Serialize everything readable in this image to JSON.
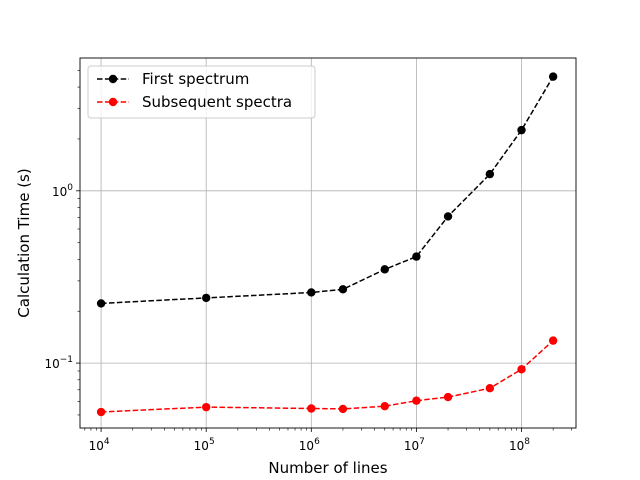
{
  "chart_data": {
    "type": "line",
    "xlabel": "Number of lines",
    "ylabel": "Calculation Time (s)",
    "x_scale": "log",
    "y_scale": "log",
    "xlim": [
      6300,
      330000000
    ],
    "ylim": [
      0.042,
      5.9
    ],
    "grid": true,
    "legend_position": "upper-left",
    "x_ticks": [
      {
        "value": 10000,
        "base": "10",
        "exp": "4"
      },
      {
        "value": 100000,
        "base": "10",
        "exp": "5"
      },
      {
        "value": 1000000,
        "base": "10",
        "exp": "6"
      },
      {
        "value": 10000000,
        "base": "10",
        "exp": "7"
      },
      {
        "value": 100000000,
        "base": "10",
        "exp": "8"
      }
    ],
    "y_ticks": [
      {
        "value": 0.1,
        "base": "10",
        "exp": "−1"
      },
      {
        "value": 1,
        "base": "10",
        "exp": "0"
      }
    ],
    "series": [
      {
        "name": "First spectrum",
        "color": "#000000",
        "linestyle": "dashed",
        "marker": "circle",
        "x": [
          10000,
          100000,
          1000000,
          2000000,
          5000000,
          10000000,
          20000000,
          50000000,
          100000000,
          200000000
        ],
        "y": [
          0.222,
          0.239,
          0.257,
          0.268,
          0.35,
          0.415,
          0.71,
          1.25,
          2.25,
          4.6
        ]
      },
      {
        "name": "Subsequent spectra",
        "color": "#ff0000",
        "linestyle": "dashed",
        "marker": "circle",
        "x": [
          10000,
          100000,
          1000000,
          2000000,
          5000000,
          10000000,
          20000000,
          50000000,
          100000000,
          200000000
        ],
        "y": [
          0.052,
          0.0555,
          0.0545,
          0.0542,
          0.0562,
          0.0605,
          0.0635,
          0.0715,
          0.092,
          0.135
        ]
      }
    ]
  }
}
